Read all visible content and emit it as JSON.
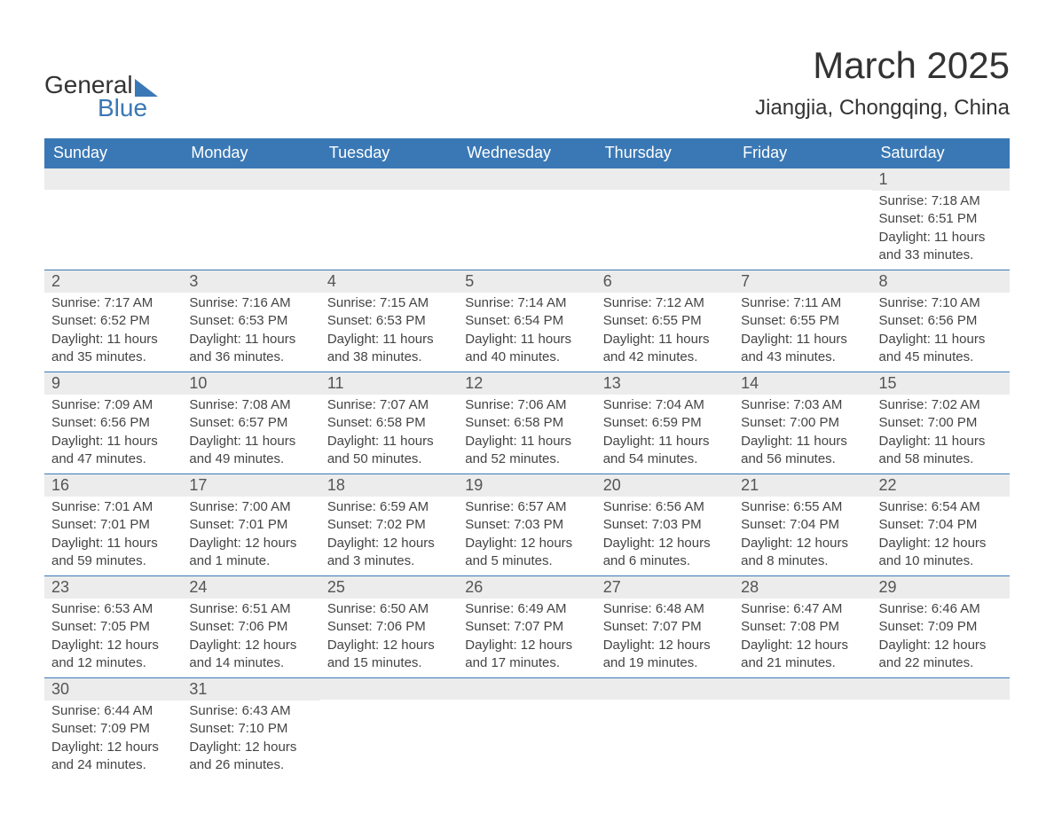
{
  "logo": {
    "text1": "General",
    "text2": "Blue"
  },
  "title": "March 2025",
  "location": "Jiangjia, Chongqing, China",
  "colors": {
    "header_bg": "#3a78b5",
    "header_text": "#ffffff",
    "daynum_bg": "#ececec",
    "text": "#444444",
    "row_border": "#3a78b5",
    "page_bg": "#ffffff"
  },
  "typography": {
    "title_fontsize": 42,
    "location_fontsize": 24,
    "dayhead_fontsize": 18,
    "daynum_fontsize": 18,
    "detail_fontsize": 15,
    "font_family": "Arial"
  },
  "layout": {
    "columns": 7,
    "rows": 6,
    "week_start": "Sunday"
  },
  "day_headers": [
    "Sunday",
    "Monday",
    "Tuesday",
    "Wednesday",
    "Thursday",
    "Friday",
    "Saturday"
  ],
  "weeks": [
    [
      {
        "blank": true
      },
      {
        "blank": true
      },
      {
        "blank": true
      },
      {
        "blank": true
      },
      {
        "blank": true
      },
      {
        "blank": true
      },
      {
        "day": 1,
        "sunrise": "7:18 AM",
        "sunset": "6:51 PM",
        "daylight": "11 hours and 33 minutes."
      }
    ],
    [
      {
        "day": 2,
        "sunrise": "7:17 AM",
        "sunset": "6:52 PM",
        "daylight": "11 hours and 35 minutes."
      },
      {
        "day": 3,
        "sunrise": "7:16 AM",
        "sunset": "6:53 PM",
        "daylight": "11 hours and 36 minutes."
      },
      {
        "day": 4,
        "sunrise": "7:15 AM",
        "sunset": "6:53 PM",
        "daylight": "11 hours and 38 minutes."
      },
      {
        "day": 5,
        "sunrise": "7:14 AM",
        "sunset": "6:54 PM",
        "daylight": "11 hours and 40 minutes."
      },
      {
        "day": 6,
        "sunrise": "7:12 AM",
        "sunset": "6:55 PM",
        "daylight": "11 hours and 42 minutes."
      },
      {
        "day": 7,
        "sunrise": "7:11 AM",
        "sunset": "6:55 PM",
        "daylight": "11 hours and 43 minutes."
      },
      {
        "day": 8,
        "sunrise": "7:10 AM",
        "sunset": "6:56 PM",
        "daylight": "11 hours and 45 minutes."
      }
    ],
    [
      {
        "day": 9,
        "sunrise": "7:09 AM",
        "sunset": "6:56 PM",
        "daylight": "11 hours and 47 minutes."
      },
      {
        "day": 10,
        "sunrise": "7:08 AM",
        "sunset": "6:57 PM",
        "daylight": "11 hours and 49 minutes."
      },
      {
        "day": 11,
        "sunrise": "7:07 AM",
        "sunset": "6:58 PM",
        "daylight": "11 hours and 50 minutes."
      },
      {
        "day": 12,
        "sunrise": "7:06 AM",
        "sunset": "6:58 PM",
        "daylight": "11 hours and 52 minutes."
      },
      {
        "day": 13,
        "sunrise": "7:04 AM",
        "sunset": "6:59 PM",
        "daylight": "11 hours and 54 minutes."
      },
      {
        "day": 14,
        "sunrise": "7:03 AM",
        "sunset": "7:00 PM",
        "daylight": "11 hours and 56 minutes."
      },
      {
        "day": 15,
        "sunrise": "7:02 AM",
        "sunset": "7:00 PM",
        "daylight": "11 hours and 58 minutes."
      }
    ],
    [
      {
        "day": 16,
        "sunrise": "7:01 AM",
        "sunset": "7:01 PM",
        "daylight": "11 hours and 59 minutes."
      },
      {
        "day": 17,
        "sunrise": "7:00 AM",
        "sunset": "7:01 PM",
        "daylight": "12 hours and 1 minute."
      },
      {
        "day": 18,
        "sunrise": "6:59 AM",
        "sunset": "7:02 PM",
        "daylight": "12 hours and 3 minutes."
      },
      {
        "day": 19,
        "sunrise": "6:57 AM",
        "sunset": "7:03 PM",
        "daylight": "12 hours and 5 minutes."
      },
      {
        "day": 20,
        "sunrise": "6:56 AM",
        "sunset": "7:03 PM",
        "daylight": "12 hours and 6 minutes."
      },
      {
        "day": 21,
        "sunrise": "6:55 AM",
        "sunset": "7:04 PM",
        "daylight": "12 hours and 8 minutes."
      },
      {
        "day": 22,
        "sunrise": "6:54 AM",
        "sunset": "7:04 PM",
        "daylight": "12 hours and 10 minutes."
      }
    ],
    [
      {
        "day": 23,
        "sunrise": "6:53 AM",
        "sunset": "7:05 PM",
        "daylight": "12 hours and 12 minutes."
      },
      {
        "day": 24,
        "sunrise": "6:51 AM",
        "sunset": "7:06 PM",
        "daylight": "12 hours and 14 minutes."
      },
      {
        "day": 25,
        "sunrise": "6:50 AM",
        "sunset": "7:06 PM",
        "daylight": "12 hours and 15 minutes."
      },
      {
        "day": 26,
        "sunrise": "6:49 AM",
        "sunset": "7:07 PM",
        "daylight": "12 hours and 17 minutes."
      },
      {
        "day": 27,
        "sunrise": "6:48 AM",
        "sunset": "7:07 PM",
        "daylight": "12 hours and 19 minutes."
      },
      {
        "day": 28,
        "sunrise": "6:47 AM",
        "sunset": "7:08 PM",
        "daylight": "12 hours and 21 minutes."
      },
      {
        "day": 29,
        "sunrise": "6:46 AM",
        "sunset": "7:09 PM",
        "daylight": "12 hours and 22 minutes."
      }
    ],
    [
      {
        "day": 30,
        "sunrise": "6:44 AM",
        "sunset": "7:09 PM",
        "daylight": "12 hours and 24 minutes."
      },
      {
        "day": 31,
        "sunrise": "6:43 AM",
        "sunset": "7:10 PM",
        "daylight": "12 hours and 26 minutes."
      },
      {
        "blank": true
      },
      {
        "blank": true
      },
      {
        "blank": true
      },
      {
        "blank": true
      },
      {
        "blank": true
      }
    ]
  ],
  "labels": {
    "sunrise_prefix": "Sunrise: ",
    "sunset_prefix": "Sunset: ",
    "daylight_prefix": "Daylight: "
  }
}
